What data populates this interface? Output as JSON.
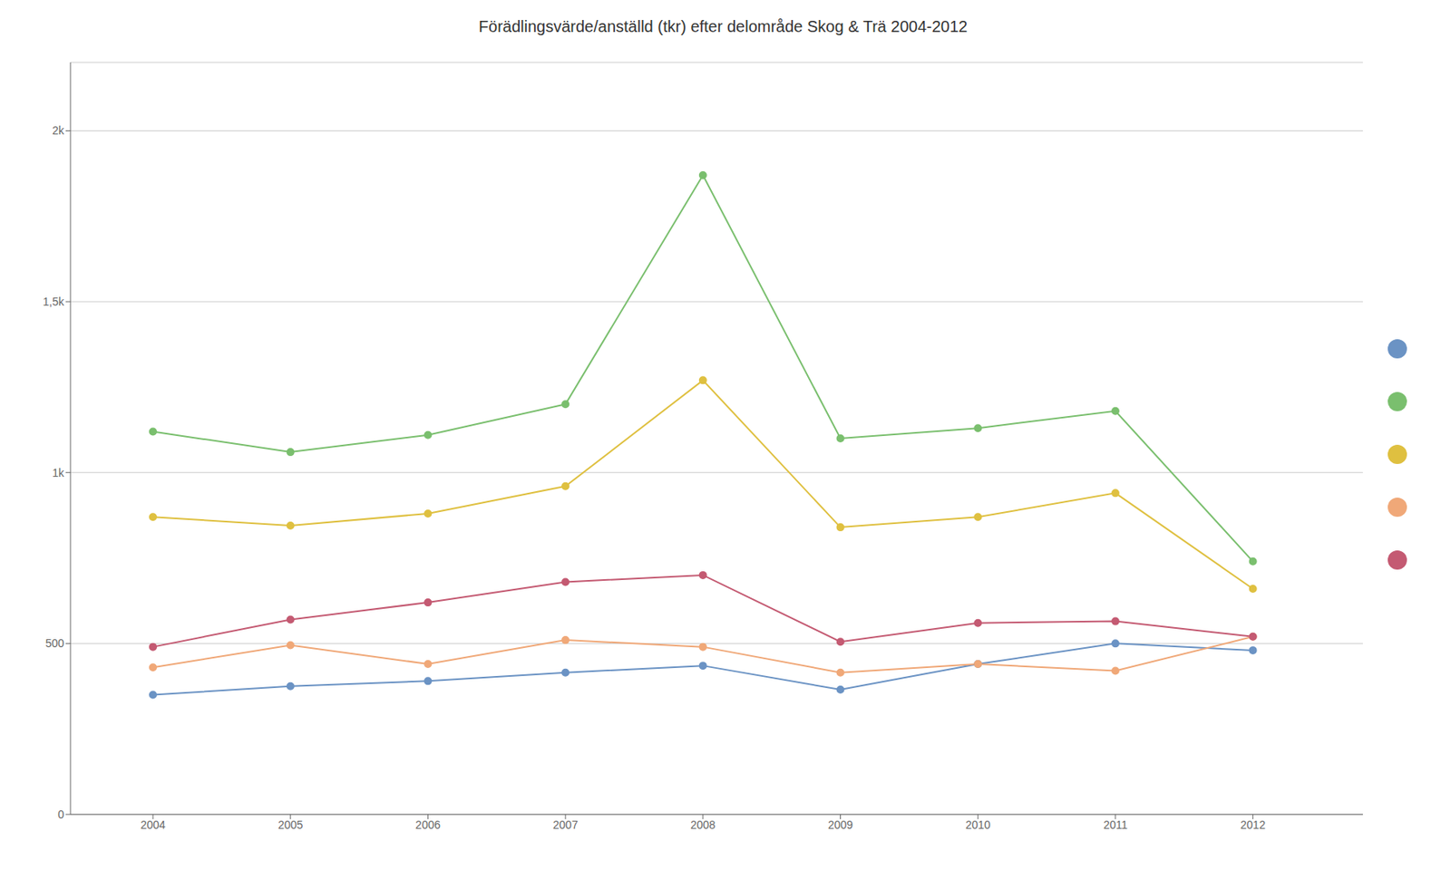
{
  "chart_data": {
    "type": "line",
    "title": "Förädlingsvärde/anställd (tkr) efter delområde Skog & Trä 2004-2012",
    "x": [
      2004,
      2005,
      2006,
      2007,
      2008,
      2009,
      2010,
      2011,
      2012
    ],
    "series": [
      {
        "color": "#6b93c4",
        "values": [
          350,
          375,
          390,
          415,
          435,
          365,
          440,
          500,
          480
        ]
      },
      {
        "color": "#7abf6e",
        "values": [
          1120,
          1060,
          1110,
          1200,
          1870,
          1100,
          1130,
          1180,
          740
        ]
      },
      {
        "color": "#dfc040",
        "values": [
          870,
          845,
          880,
          960,
          1270,
          840,
          870,
          940,
          660
        ]
      },
      {
        "color": "#f0a878",
        "values": [
          430,
          495,
          440,
          510,
          490,
          415,
          440,
          420,
          520
        ]
      },
      {
        "color": "#c45a72",
        "values": [
          490,
          570,
          620,
          680,
          700,
          505,
          560,
          565,
          520
        ]
      }
    ],
    "xlim": [
      2003.4,
      2012.8
    ],
    "xticks": [
      2004,
      2005,
      2006,
      2007,
      2008,
      2009,
      2010,
      2011,
      2012
    ],
    "ylim": [
      0,
      2200
    ],
    "yticks": [
      0,
      500,
      {
        "value": 1000,
        "label": "1k"
      },
      {
        "value": 1500,
        "label": "1,5k"
      },
      {
        "value": 2000,
        "label": "2k"
      }
    ],
    "grid": true,
    "marker": "circle",
    "legend": "right"
  }
}
